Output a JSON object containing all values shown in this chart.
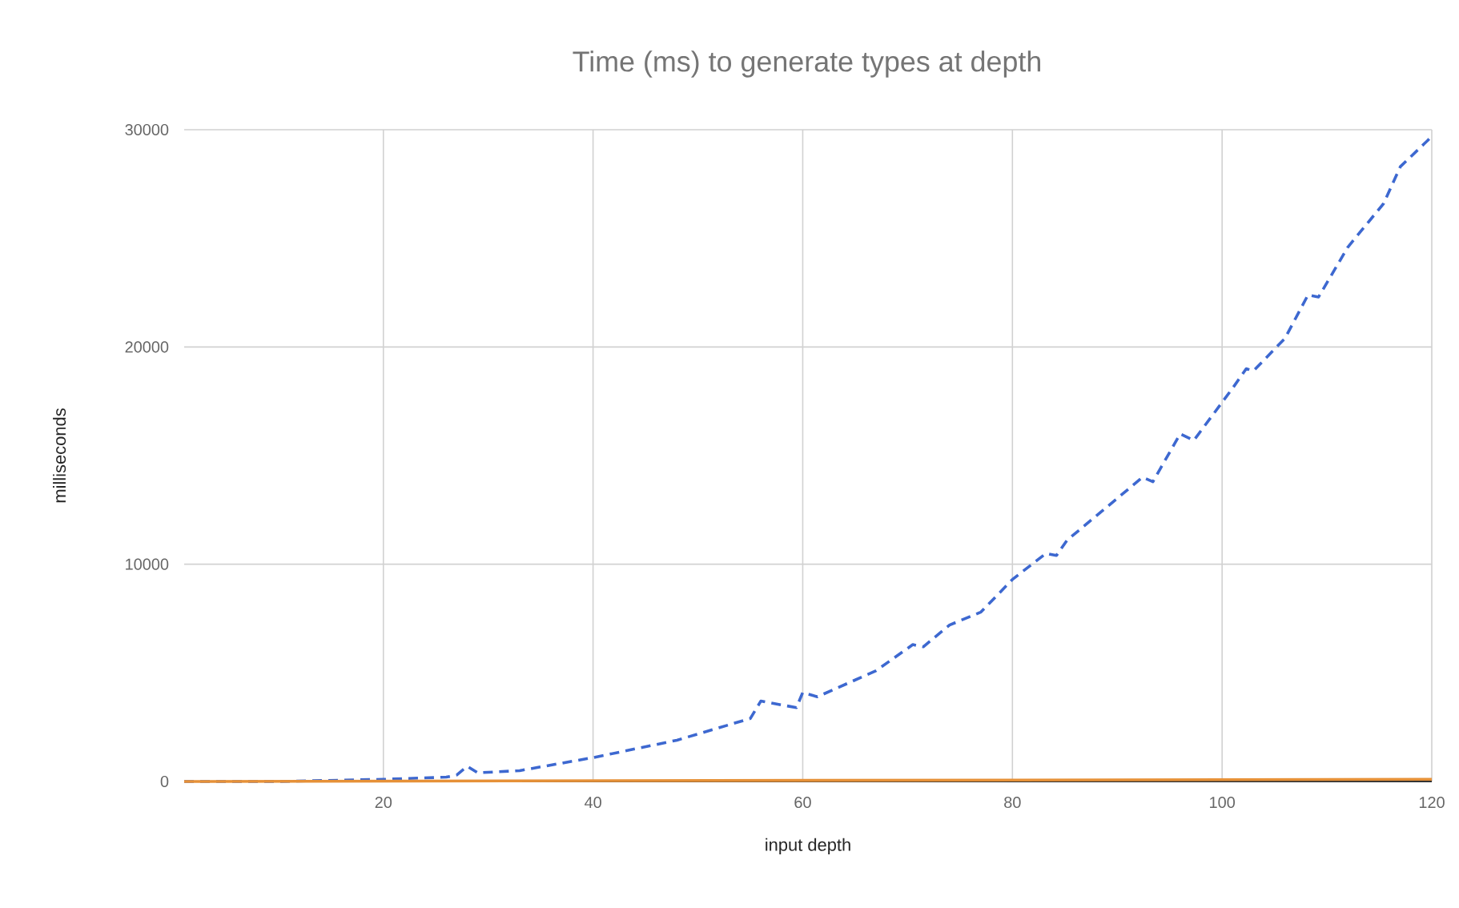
{
  "chart_data": {
    "type": "line",
    "title": "Time (ms) to generate types at depth",
    "xlabel": "input depth",
    "ylabel": "milliseconds",
    "xlim": [
      1,
      120
    ],
    "xticks": [
      20,
      40,
      60,
      80,
      100,
      120
    ],
    "ylim": [
      0,
      30000
    ],
    "yticks": [
      0,
      10000,
      20000,
      30000
    ],
    "grid": true,
    "marker": "none",
    "series": [
      {
        "color": "#3d68d0",
        "line_style": "dashed",
        "x": [
          1,
          10,
          20,
          26,
          27,
          28,
          29,
          33,
          40,
          48,
          55,
          56,
          59.4,
          60,
          61.4,
          67,
          70.5,
          71.5,
          74,
          77,
          80,
          83.2,
          84.2,
          85.2,
          92.4,
          93.4,
          96,
          97.3,
          101,
          102.3,
          103,
          106,
          108.2,
          109.2,
          112,
          115.4,
          117,
          119.6,
          120
        ],
        "values": [
          0,
          0,
          100,
          200,
          300,
          700,
          400,
          500,
          1100,
          1900,
          2900,
          3700,
          3400,
          4100,
          3900,
          5100,
          6300,
          6200,
          7200,
          7800,
          9300,
          10500,
          10400,
          11100,
          14000,
          13800,
          16000,
          15700,
          18100,
          19000,
          18900,
          20400,
          22400,
          22300,
          24600,
          26600,
          28300,
          29500,
          29700
        ]
      },
      {
        "color": "#e69138",
        "line_style": "solid",
        "x": [
          1,
          120
        ],
        "values": [
          0,
          100
        ]
      }
    ]
  }
}
